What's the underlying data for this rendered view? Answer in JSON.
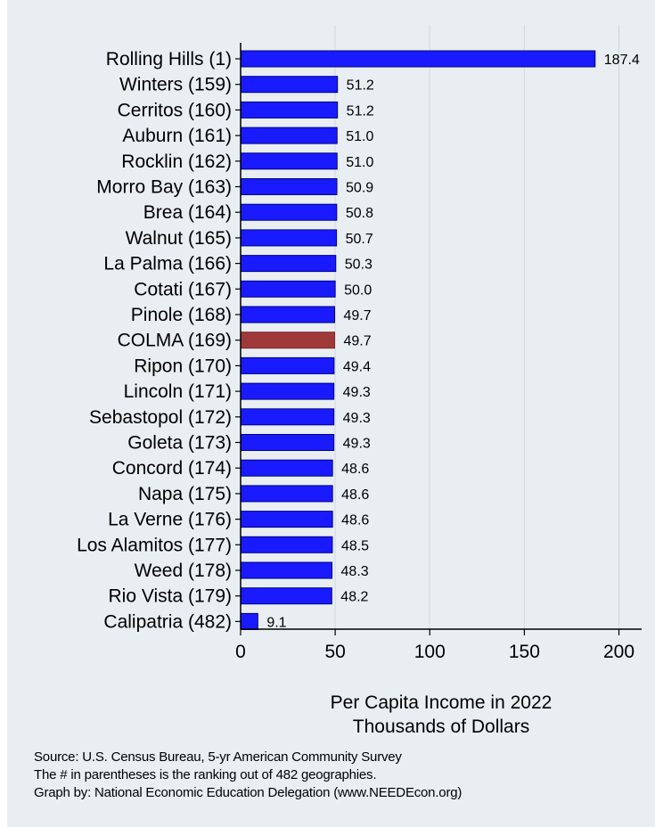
{
  "chart_data": {
    "type": "bar",
    "orientation": "horizontal",
    "categories": [
      "Rolling Hills  (1)",
      "Winters (159)",
      "Cerritos (160)",
      "Auburn (161)",
      "Rocklin (162)",
      "Morro Bay (163)",
      "Brea (164)",
      "Walnut (165)",
      "La Palma (166)",
      "Cotati (167)",
      "Pinole (168)",
      "COLMA (169)",
      "Ripon (170)",
      "Lincoln (171)",
      "Sebastopol (172)",
      "Goleta (173)",
      "Concord (174)",
      "Napa (175)",
      "La Verne (176)",
      "Los Alamitos (177)",
      "Weed (178)",
      "Rio Vista (179)",
      "Calipatria (482)"
    ],
    "values": [
      187.4,
      51.2,
      51.2,
      51.0,
      51.0,
      50.9,
      50.8,
      50.7,
      50.3,
      50.0,
      49.7,
      49.7,
      49.4,
      49.3,
      49.3,
      49.3,
      48.6,
      48.6,
      48.6,
      48.5,
      48.3,
      48.2,
      9.1
    ],
    "value_labels": [
      "187.4",
      "51.2",
      "51.2",
      "51.0",
      "51.0",
      "50.9",
      "50.8",
      "50.7",
      "50.3",
      "50.0",
      "49.7",
      "49.7",
      "49.4",
      "49.3",
      "49.3",
      "49.3",
      "48.6",
      "48.6",
      "48.6",
      "48.5",
      "48.3",
      "48.2",
      "9.1"
    ],
    "highlight_category": "COLMA (169)",
    "xticks": [
      0,
      50,
      100,
      150,
      200
    ],
    "xtick_labels": [
      "0",
      "50",
      "100",
      "150",
      "200"
    ],
    "xlim": [
      0,
      212
    ],
    "xlabel_line1": "Per Capita Income in 2022",
    "xlabel_line2": "Thousands of Dollars",
    "grid": true,
    "colors": {
      "bar": "#1a1aff",
      "bar_edge": "#000080",
      "highlight": "#a03a3a",
      "highlight_edge": "#7a2828",
      "background": "#e8eef2",
      "grid": "#d4dde3"
    }
  },
  "footnotes": {
    "line1": "Source: U.S. Census Bureau, 5-yr American Community Survey",
    "line2": "The # in parentheses is the ranking out of 482 geographies.",
    "line3": "Graph by: National Economic Education Delegation (www.NEEDEcon.org)"
  }
}
